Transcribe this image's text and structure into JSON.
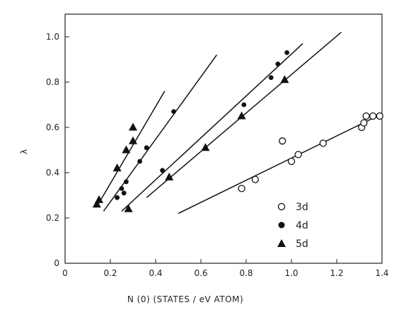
{
  "chart_data": {
    "type": "scatter",
    "title": "",
    "xlabel": "N (0) (STATES / eV ATOM)",
    "ylabel": "λ",
    "xlim": [
      0,
      1.4
    ],
    "ylim": [
      0,
      1.1
    ],
    "xticks": [
      0,
      0.2,
      0.4,
      0.6,
      0.8,
      1.0,
      1.2,
      1.4
    ],
    "xtick_labels": [
      "0",
      "0.2",
      "0.4",
      "0.6",
      "0.8",
      "1.0",
      "1.2",
      "1.4"
    ],
    "yticks": [
      0,
      0.2,
      0.4,
      0.6,
      0.8,
      1.0
    ],
    "ytick_labels": [
      "0",
      "0.2",
      "0.4",
      "0.6",
      "0.8",
      "1.0"
    ],
    "grid": false,
    "legend_position": "lower-right",
    "series": [
      {
        "name": "3d",
        "marker": "open-circle",
        "points": [
          [
            0.78,
            0.33
          ],
          [
            0.84,
            0.37
          ],
          [
            0.96,
            0.54
          ],
          [
            1.0,
            0.45
          ],
          [
            1.03,
            0.48
          ],
          [
            1.14,
            0.53
          ],
          [
            1.31,
            0.6
          ],
          [
            1.32,
            0.62
          ],
          [
            1.33,
            0.65
          ],
          [
            1.36,
            0.65
          ],
          [
            1.39,
            0.65
          ]
        ]
      },
      {
        "name": "4d",
        "marker": "filled-circle",
        "points": [
          [
            0.23,
            0.29
          ],
          [
            0.25,
            0.33
          ],
          [
            0.26,
            0.31
          ],
          [
            0.27,
            0.36
          ],
          [
            0.33,
            0.45
          ],
          [
            0.36,
            0.51
          ],
          [
            0.43,
            0.41
          ],
          [
            0.48,
            0.67
          ],
          [
            0.79,
            0.7
          ],
          [
            0.91,
            0.82
          ],
          [
            0.94,
            0.88
          ],
          [
            0.98,
            0.93
          ]
        ]
      },
      {
        "name": "5d",
        "marker": "filled-triangle",
        "points": [
          [
            0.14,
            0.26
          ],
          [
            0.15,
            0.28
          ],
          [
            0.23,
            0.42
          ],
          [
            0.27,
            0.5
          ],
          [
            0.28,
            0.24
          ],
          [
            0.3,
            0.54
          ],
          [
            0.3,
            0.6
          ],
          [
            0.46,
            0.38
          ],
          [
            0.62,
            0.51
          ],
          [
            0.78,
            0.65
          ],
          [
            0.97,
            0.81
          ]
        ]
      }
    ],
    "fit_lines": [
      {
        "x": [
          0.14,
          0.44
        ],
        "y": [
          0.25,
          0.76
        ]
      },
      {
        "x": [
          0.17,
          0.67
        ],
        "y": [
          0.23,
          0.92
        ]
      },
      {
        "x": [
          0.25,
          1.05
        ],
        "y": [
          0.23,
          0.97
        ]
      },
      {
        "x": [
          0.36,
          1.22
        ],
        "y": [
          0.29,
          1.02
        ]
      },
      {
        "x": [
          0.5,
          1.4
        ],
        "y": [
          0.22,
          0.66
        ]
      }
    ]
  }
}
